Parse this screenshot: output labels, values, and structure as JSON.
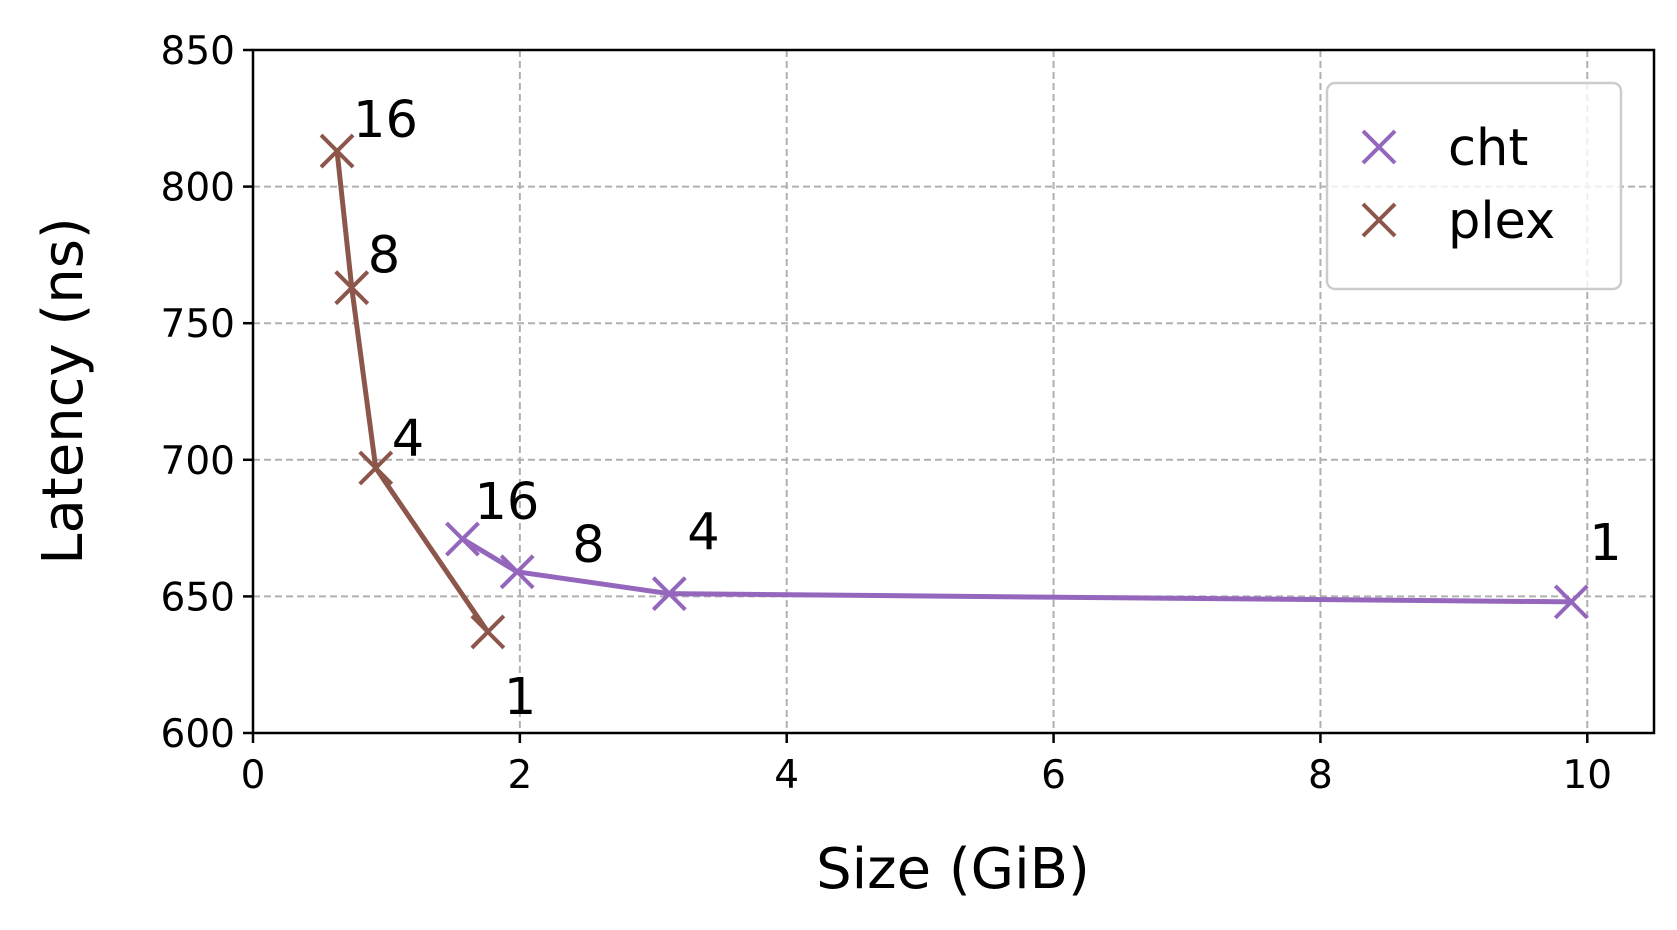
{
  "chart_data": {
    "type": "line",
    "xlabel": "Size (GiB)",
    "ylabel": "Latency (ns)",
    "xlim": [
      0,
      10.5
    ],
    "ylim": [
      600,
      850
    ],
    "xticks": [
      0,
      2,
      4,
      6,
      8,
      10
    ],
    "yticks": [
      600,
      650,
      700,
      750,
      800,
      850
    ],
    "grid": true,
    "legend_position": "upper right",
    "series": [
      {
        "name": "cht",
        "color": "#9467bd",
        "marker": "x",
        "points": [
          {
            "x": 1.57,
            "y": 671,
            "label": "16"
          },
          {
            "x": 1.98,
            "y": 659,
            "label": "8"
          },
          {
            "x": 3.12,
            "y": 651,
            "label": "4"
          },
          {
            "x": 9.88,
            "y": 648,
            "label": "1"
          }
        ]
      },
      {
        "name": "plex",
        "color": "#8c564b",
        "marker": "x",
        "points": [
          {
            "x": 0.63,
            "y": 813,
            "label": "16"
          },
          {
            "x": 0.74,
            "y": 763,
            "label": "8"
          },
          {
            "x": 0.92,
            "y": 697,
            "label": "4"
          },
          {
            "x": 1.76,
            "y": 637,
            "label": "1"
          }
        ]
      }
    ]
  }
}
